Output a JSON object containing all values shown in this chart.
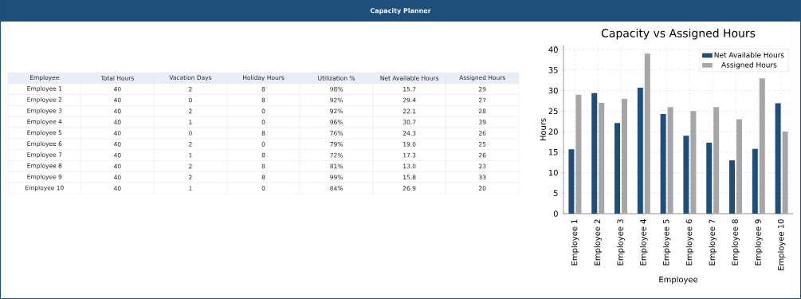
{
  "chart_data": [
    {
      "type": "other",
      "title": "Capacity Planner",
      "ylabel": "Employee",
      "categories": [
        "Total Hours",
        "Vacation Days",
        "Holiday Hours",
        "Utilization %",
        "Net Available Hours",
        "Assigned Hours"
      ],
      "y_categories": [
        "Employee 1",
        "Employee 2",
        "Employee 3",
        "Employee 4",
        "Employee 5",
        "Employee 6",
        "Employee 7",
        "Employee 8",
        "Employee 9",
        "Employee 10"
      ],
      "cell_labels": [
        [
          "40",
          "2",
          "8",
          "98%",
          "15.7",
          "29"
        ],
        [
          "40",
          "0",
          "8",
          "92%",
          "29.4",
          "27"
        ],
        [
          "40",
          "2",
          "0",
          "92%",
          "22.1",
          "28"
        ],
        [
          "40",
          "1",
          "0",
          "96%",
          "30.7",
          "39"
        ],
        [
          "40",
          "0",
          "8",
          "76%",
          "24.3",
          "26"
        ],
        [
          "40",
          "2",
          "0",
          "79%",
          "19.0",
          "25"
        ],
        [
          "40",
          "1",
          "8",
          "72%",
          "17.3",
          "26"
        ],
        [
          "40",
          "2",
          "8",
          "81%",
          "13.0",
          "23"
        ],
        [
          "40",
          "2",
          "8",
          "99%",
          "15.8",
          "33"
        ],
        [
          "40",
          "1",
          "0",
          "84%",
          "26.9",
          "20"
        ]
      ]
    },
    {
      "type": "bar",
      "title": "Capacity vs Assigned Hours",
      "xlabel": "Employee",
      "ylabel": "Hours",
      "categories": [
        "Employee 1",
        "Employee 2",
        "Employee 3",
        "Employee 4",
        "Employee 5",
        "Employee 6",
        "Employee 7",
        "Employee 8",
        "Employee 9",
        "Employee 10"
      ],
      "series": [
        {
          "name": "Net Available Hours",
          "color": "#1f4e79",
          "values": [
            15.7,
            29.4,
            22.1,
            30.7,
            24.3,
            19.0,
            17.3,
            13.0,
            15.8,
            26.9
          ]
        },
        {
          "name": "Assigned Hours",
          "color": "#a6a6a6",
          "values": [
            29,
            27,
            28,
            39,
            26,
            25,
            26,
            23,
            33,
            20
          ]
        }
      ],
      "ylim": [
        0,
        41
      ],
      "yticks": [
        0,
        5,
        10,
        15,
        20,
        25,
        30,
        35,
        40
      ],
      "grid": true,
      "legend": "top right"
    }
  ]
}
